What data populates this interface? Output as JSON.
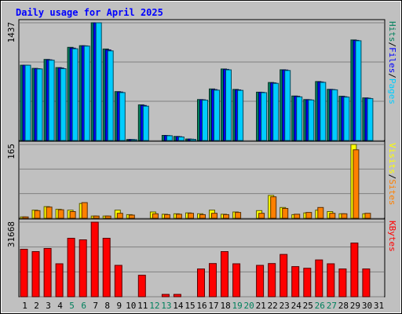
{
  "chart_data": {
    "type": "bar",
    "title": "Daily usage for April 2025",
    "days": [
      "1",
      "2",
      "3",
      "4",
      "5",
      "6",
      "7",
      "8",
      "9",
      "10",
      "11",
      "12",
      "13",
      "14",
      "15",
      "16",
      "17",
      "18",
      "19",
      "20",
      "21",
      "22",
      "23",
      "24",
      "25",
      "26",
      "27",
      "28",
      "29",
      "30",
      "31"
    ],
    "weekend_days": [
      "5",
      "6",
      "12",
      "13",
      "19",
      "20",
      "26",
      "27"
    ],
    "panels": [
      {
        "id": "top",
        "ymax_label": "1437",
        "ymax": 1437,
        "axis_label_parts": [
          "Pages",
          "/",
          "Files",
          "/",
          "Hits"
        ],
        "series": [
          {
            "name": "Hits",
            "color": "#00805c",
            "values": [
              919,
              880,
              990,
              890,
              1137,
              1157,
              1437,
              1117,
              597,
              12,
              435,
              0,
              62,
              50,
              18,
              500,
              629,
              873,
              624,
              0,
              590,
              708,
              863,
              543,
              500,
              719,
              625,
              540,
              1227,
              520,
              0
            ]
          },
          {
            "name": "Files",
            "color": "#0000ff",
            "values": [
              919,
              877,
              985,
              884,
              1128,
              1155,
              1437,
              1106,
              592,
              12,
              428,
              0,
              60,
              47,
              16,
              497,
              622,
              868,
              618,
              0,
              588,
              703,
              860,
              539,
              497,
              715,
              622,
              535,
              1222,
              516,
              0
            ]
          },
          {
            "name": "Pages",
            "color": "#00ccff",
            "values": [
              919,
              874,
              980,
              877,
              1120,
              1152,
              1437,
              1094,
              585,
              11,
              420,
              0,
              58,
              43,
              14,
              492,
              615,
              862,
              612,
              0,
              584,
              697,
              855,
              533,
              494,
              710,
              619,
              530,
              1218,
              512,
              0
            ]
          }
        ]
      },
      {
        "id": "middle",
        "ymax_label": "165",
        "ymax": 165,
        "axis_label_parts": [
          "Sites",
          "/",
          "Visits"
        ],
        "series": [
          {
            "name": "Visits",
            "color": "#ffff00",
            "values": [
              3,
              18,
              26,
              20,
              18,
              33,
              5,
              5,
              18,
              8,
              0,
              14,
              9,
              10,
              12,
              10,
              18,
              9,
              14,
              0,
              17,
              51,
              24,
              8,
              12,
              18,
              15,
              10,
              165,
              10,
              0
            ]
          },
          {
            "name": "Sites",
            "color": "#ff8000",
            "values": [
              3,
              17,
              25,
              19,
              15,
              35,
              5,
              5,
              11,
              7,
              0,
              10,
              8,
              9,
              11,
              8,
              11,
              8,
              13,
              0,
              11,
              48,
              22,
              9,
              13,
              24,
              11,
              10,
              153,
              11,
              0
            ]
          }
        ]
      },
      {
        "id": "bottom",
        "ymax_label": "31668",
        "ymax": 31668,
        "axis_label_parts": [
          "KBytes"
        ],
        "series": [
          {
            "name": "KBytes",
            "color": "#ff0000",
            "values": [
              20160,
              19154,
              20494,
              13997,
              24847,
              24163,
              31668,
              24847,
              13349,
              0,
              9143,
              0,
              1009,
              1009,
              0,
              11812,
              14097,
              19154,
              13997,
              0,
              13349,
              14097,
              17981,
              12814,
              12117,
              15646,
              13997,
              11812,
              22803,
              11812,
              0
            ]
          }
        ]
      }
    ]
  },
  "colors": {
    "background": "#c0c0c0",
    "plot_background": "#c0c0c0",
    "gridline": "#808080",
    "title_text": "#0000ff",
    "weekend_label": "#00805c",
    "weekday_label": "#000000"
  }
}
